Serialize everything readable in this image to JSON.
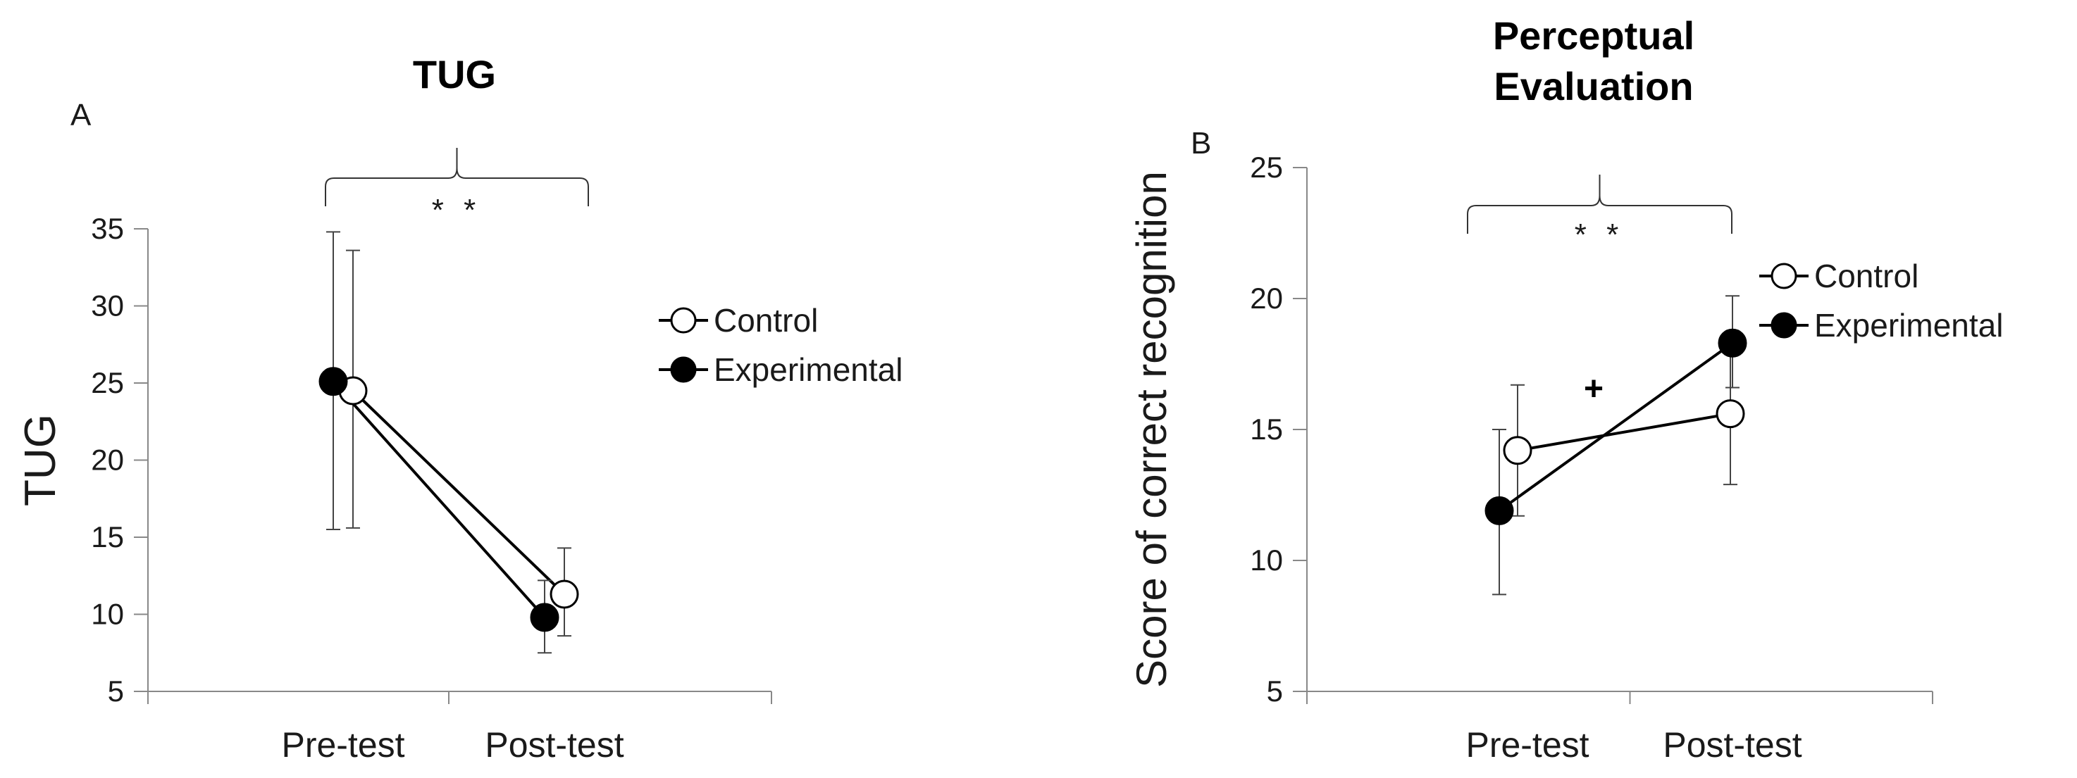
{
  "chart_data": [
    {
      "type": "line",
      "panel_label": "A",
      "title": "TUG",
      "xlabel": "",
      "ylabel": "TUG",
      "categories": [
        "Pre-test",
        "Post-test"
      ],
      "ylim": [
        5,
        35
      ],
      "yticks": [
        5,
        10,
        15,
        20,
        25,
        30,
        35
      ],
      "grid": false,
      "legend": "right",
      "significance": "* *",
      "series": [
        {
          "name": "Control",
          "marker": "open-circle",
          "color": "#000000",
          "values": [
            24.5,
            11.3
          ],
          "err_high": [
            33.6,
            14.3
          ],
          "err_low": [
            15.6,
            8.6
          ]
        },
        {
          "name": "Experimental",
          "marker": "filled-circle",
          "color": "#000000",
          "values": [
            25.1,
            9.8
          ],
          "err_high": [
            34.8,
            12.2
          ],
          "err_low": [
            15.5,
            7.5
          ]
        }
      ]
    },
    {
      "type": "line",
      "panel_label": "B",
      "title": "Perceptual Evaluation",
      "xlabel": "",
      "ylabel": "Score of correct recognition",
      "categories": [
        "Pre-test",
        "Post-test"
      ],
      "ylim": [
        5,
        25
      ],
      "yticks": [
        5,
        10,
        15,
        20,
        25
      ],
      "grid": false,
      "legend": "top-right",
      "significance": "* *",
      "interaction_mark": "+",
      "series": [
        {
          "name": "Control",
          "marker": "open-circle",
          "color": "#000000",
          "values": [
            14.2,
            15.6
          ],
          "err_high": [
            16.7,
            18.4
          ],
          "err_low": [
            11.7,
            12.9
          ]
        },
        {
          "name": "Experimental",
          "marker": "filled-circle",
          "color": "#000000",
          "values": [
            11.9,
            18.3
          ],
          "err_high": [
            15.0,
            20.1
          ],
          "err_low": [
            8.7,
            16.6
          ]
        }
      ]
    }
  ]
}
